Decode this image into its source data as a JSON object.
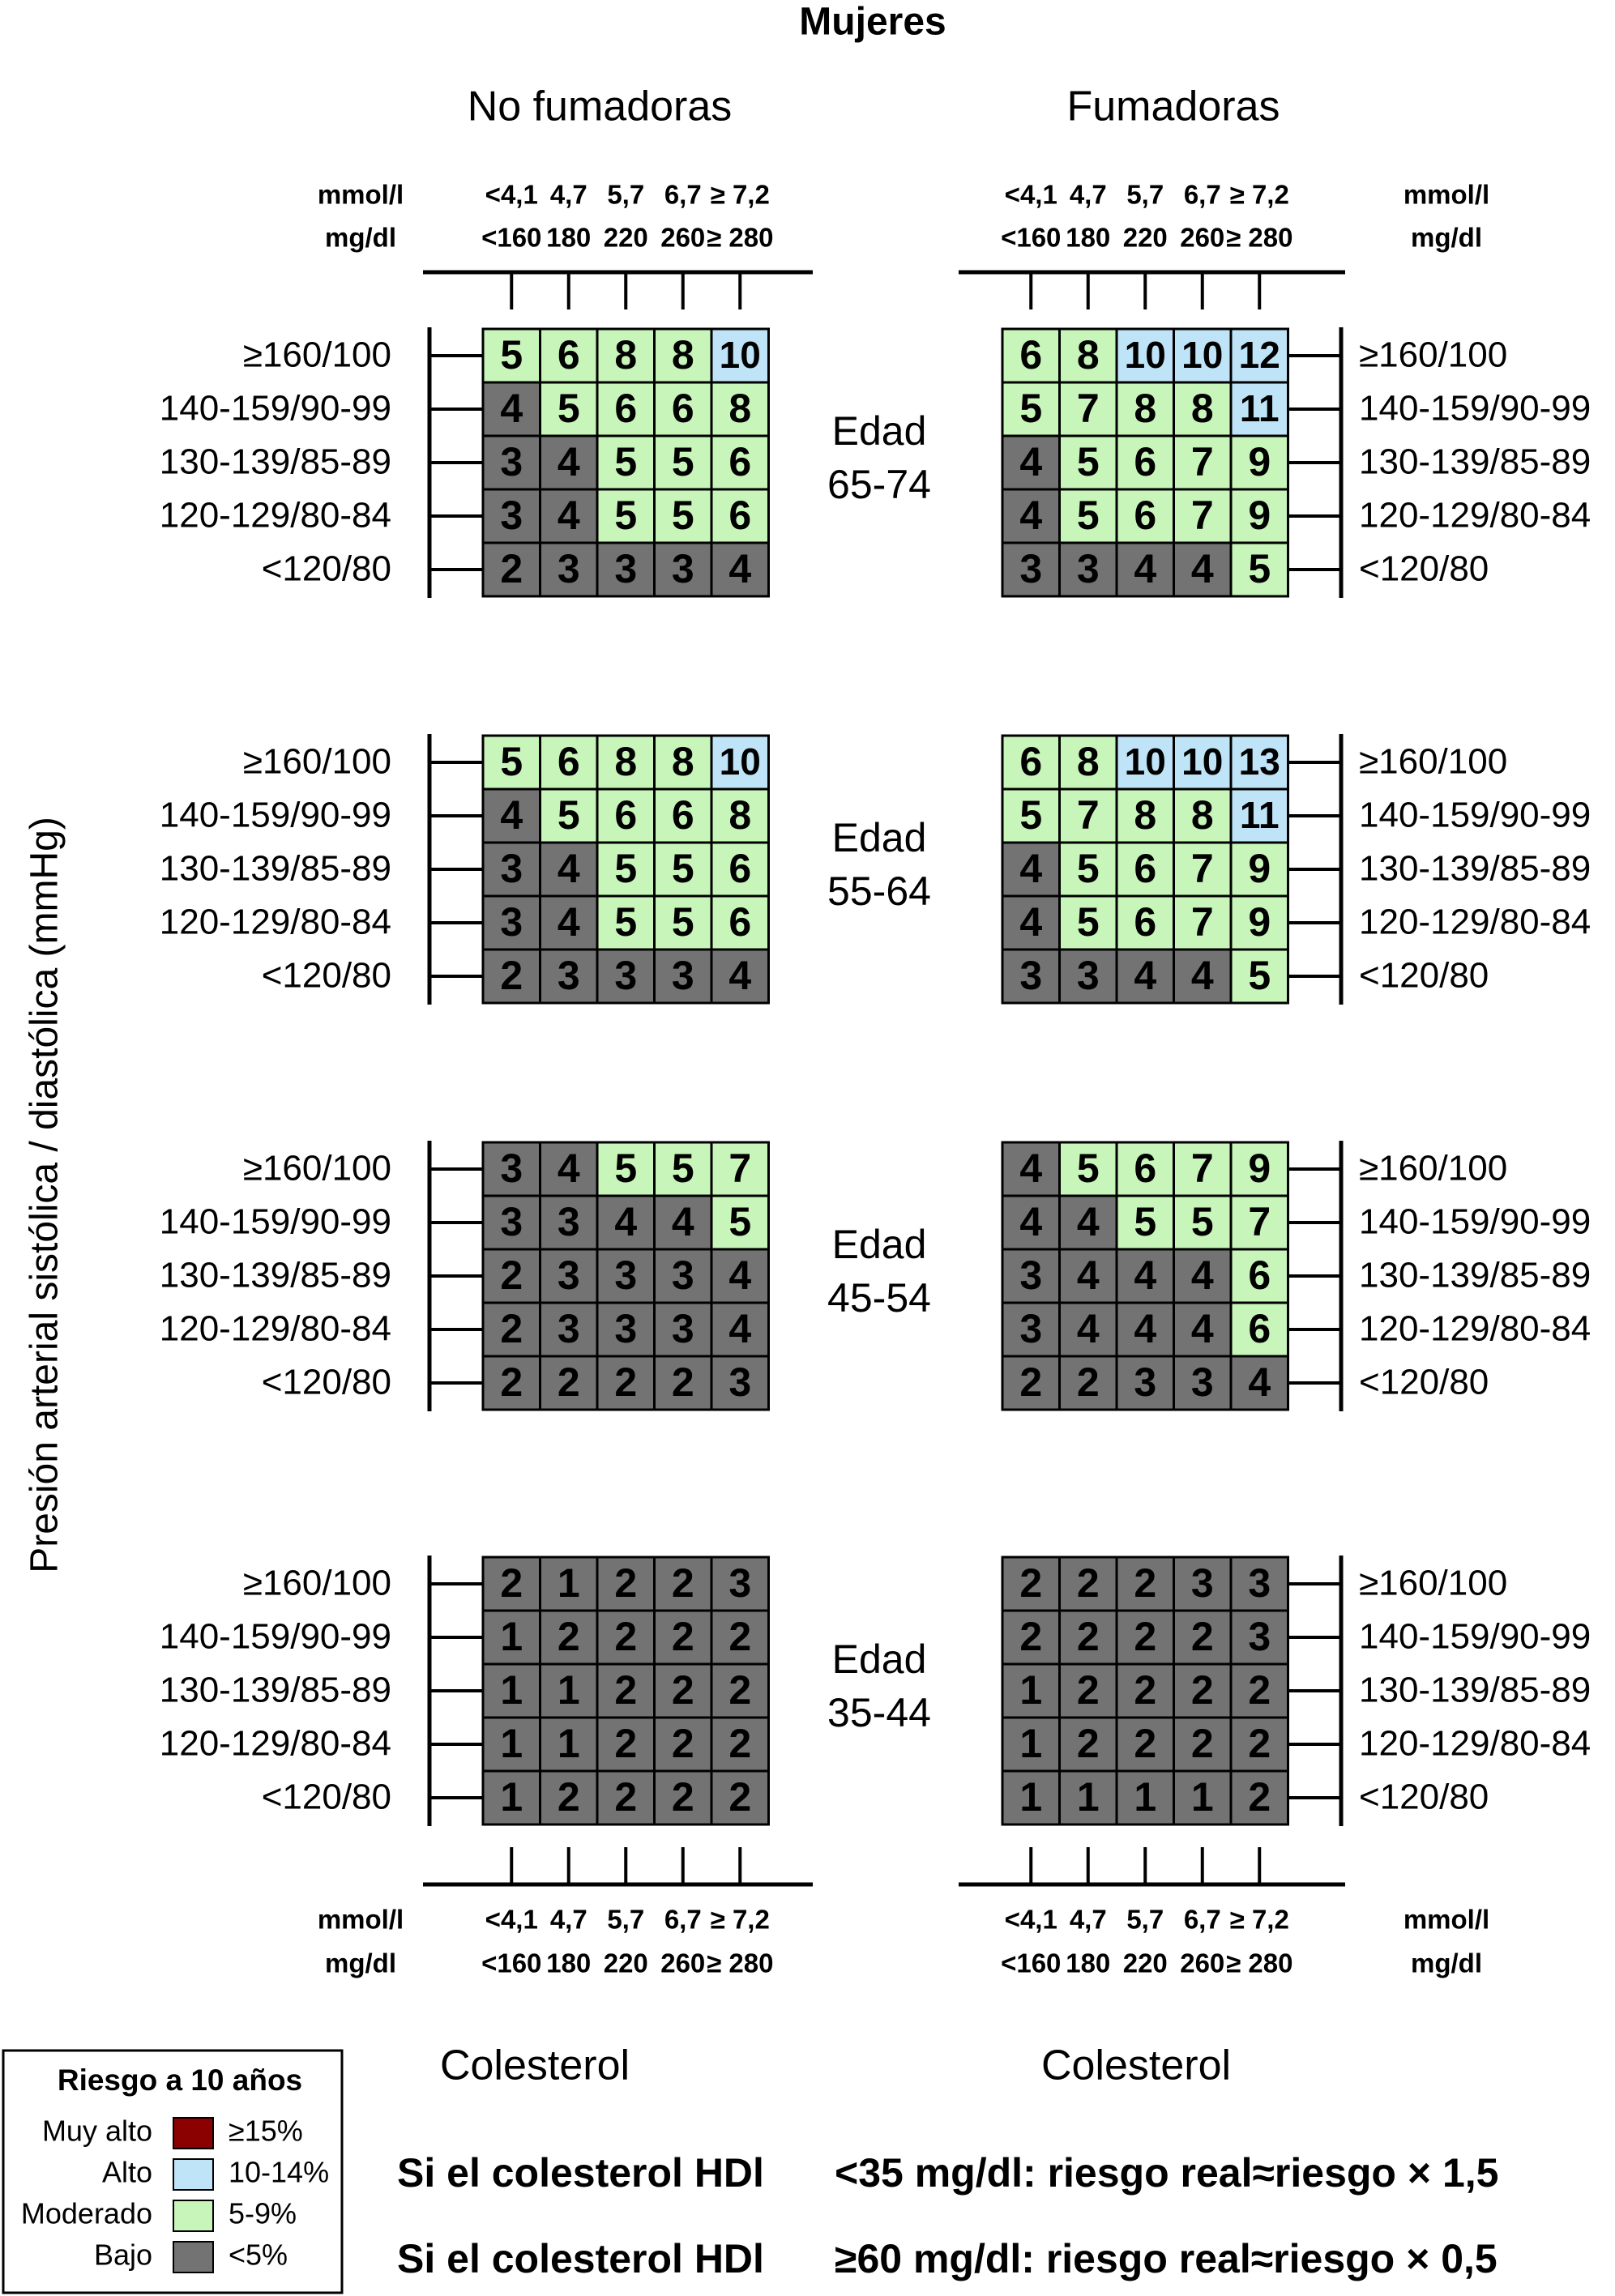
{
  "chart_data": {
    "type": "heatmap",
    "title": "Mujeres",
    "ylabel": "Presión arterial sistólica / diastólica (mmHg)",
    "xlabel": "Colesterol",
    "columns": [
      {
        "label": "No fumadoras",
        "side": "left"
      },
      {
        "label": "Fumadoras",
        "side": "right"
      }
    ],
    "cholesterol_unit_mmol": "mmol/l",
    "cholesterol_unit_mg": "mg/dl",
    "cholesterol_mmol": [
      "<4,1",
      "4,7",
      "5,7",
      "6,7",
      "≥ 7,2"
    ],
    "cholesterol_mgdl": [
      "<160",
      "180",
      "220",
      "260",
      "≥ 280"
    ],
    "bp_levels": [
      "≥160/100",
      "140-159/90-99",
      "130-139/85-89",
      "120-129/80-84",
      "<120/80"
    ],
    "age_word": "Edad",
    "ages": [
      "65-74",
      "55-64",
      "45-54",
      "35-44"
    ],
    "grids": [
      {
        "age": "65-74",
        "smoker": false,
        "values": [
          [
            5,
            6,
            8,
            8,
            10
          ],
          [
            4,
            5,
            6,
            6,
            8
          ],
          [
            3,
            4,
            5,
            5,
            6
          ],
          [
            3,
            4,
            5,
            5,
            6
          ],
          [
            2,
            3,
            3,
            3,
            4
          ]
        ]
      },
      {
        "age": "65-74",
        "smoker": true,
        "values": [
          [
            6,
            8,
            10,
            10,
            12
          ],
          [
            5,
            7,
            8,
            8,
            11
          ],
          [
            4,
            5,
            6,
            7,
            9
          ],
          [
            4,
            5,
            6,
            7,
            9
          ],
          [
            3,
            3,
            4,
            4,
            5
          ]
        ]
      },
      {
        "age": "55-64",
        "smoker": false,
        "values": [
          [
            5,
            6,
            8,
            8,
            10
          ],
          [
            4,
            5,
            6,
            6,
            8
          ],
          [
            3,
            4,
            5,
            5,
            6
          ],
          [
            3,
            4,
            5,
            5,
            6
          ],
          [
            2,
            3,
            3,
            3,
            4
          ]
        ]
      },
      {
        "age": "55-64",
        "smoker": true,
        "values": [
          [
            6,
            8,
            10,
            10,
            13
          ],
          [
            5,
            7,
            8,
            8,
            11
          ],
          [
            4,
            5,
            6,
            7,
            9
          ],
          [
            4,
            5,
            6,
            7,
            9
          ],
          [
            3,
            3,
            4,
            4,
            5
          ]
        ]
      },
      {
        "age": "45-54",
        "smoker": false,
        "values": [
          [
            3,
            4,
            5,
            5,
            7
          ],
          [
            3,
            3,
            4,
            4,
            5
          ],
          [
            2,
            3,
            3,
            3,
            4
          ],
          [
            2,
            3,
            3,
            3,
            4
          ],
          [
            2,
            2,
            2,
            2,
            3
          ]
        ]
      },
      {
        "age": "45-54",
        "smoker": true,
        "values": [
          [
            4,
            5,
            6,
            7,
            9
          ],
          [
            4,
            4,
            5,
            5,
            7
          ],
          [
            3,
            4,
            4,
            4,
            6
          ],
          [
            3,
            4,
            4,
            4,
            6
          ],
          [
            2,
            2,
            3,
            3,
            4
          ]
        ]
      },
      {
        "age": "35-44",
        "smoker": false,
        "values": [
          [
            2,
            1,
            2,
            2,
            3
          ],
          [
            1,
            2,
            2,
            2,
            2
          ],
          [
            1,
            1,
            2,
            2,
            2
          ],
          [
            1,
            1,
            2,
            2,
            2
          ],
          [
            1,
            2,
            2,
            2,
            2
          ]
        ]
      },
      {
        "age": "35-44",
        "smoker": true,
        "values": [
          [
            2,
            2,
            2,
            3,
            3
          ],
          [
            2,
            2,
            2,
            2,
            3
          ],
          [
            1,
            2,
            2,
            2,
            2
          ],
          [
            1,
            2,
            2,
            2,
            2
          ],
          [
            1,
            1,
            1,
            1,
            2
          ]
        ]
      }
    ],
    "legend": {
      "title": "Riesgo a 10 años",
      "items": [
        {
          "label": "Muy alto",
          "range": "≥15%",
          "color": "#8b0000",
          "min": 15
        },
        {
          "label": "Alto",
          "range": "10-14%",
          "color": "#bfe4f7",
          "min": 10
        },
        {
          "label": "Moderado",
          "range": "5-9%",
          "color": "#c8f5b9",
          "min": 5
        },
        {
          "label": "Bajo",
          "range": "<5%",
          "color": "#737373",
          "min": 0
        }
      ]
    },
    "notes": [
      {
        "prefix": "Si el colesterol HDl",
        "text": "<35 mg/dl: riesgo real≈riesgo × 1,5"
      },
      {
        "prefix": "Si el colesterol HDl",
        "text": "≥60 mg/dl: riesgo real≈riesgo × 0,5"
      }
    ]
  }
}
